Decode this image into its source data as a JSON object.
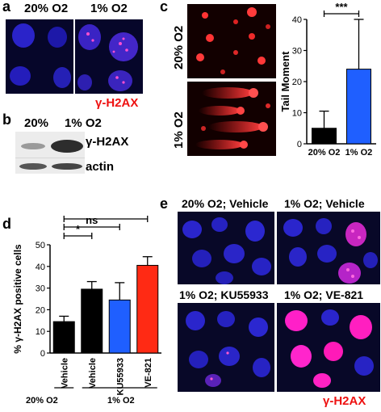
{
  "panel_a": {
    "letter": "a",
    "labels": [
      "20% O2",
      "1% O2"
    ],
    "stain": "γ-H2AX"
  },
  "panel_b": {
    "letter": "b",
    "lanes": [
      "20%",
      "1% O2"
    ],
    "bands": [
      "γ-H2AX",
      "actin"
    ]
  },
  "panel_c": {
    "letter": "c",
    "row_labels": [
      "20% O2",
      "1% O2"
    ]
  },
  "panel_d": {
    "letter": "d",
    "group_labels": [
      "20% O2",
      "1% O2"
    ]
  },
  "panel_e": {
    "letter": "e",
    "titles": [
      "20% O2; Vehicle",
      "1% O2; Vehicle",
      "1% O2; KU55933",
      "1% O2; VE-821"
    ],
    "stain": "γ-H2AX"
  },
  "chart_data": [
    {
      "type": "bar",
      "panel": "c",
      "categories": [
        "20% O2",
        "1% O2"
      ],
      "values": [
        5,
        24
      ],
      "errors": [
        5.5,
        16
      ],
      "colors": [
        "#000000",
        "#1f5fff"
      ],
      "ylabel": "Tail Moment",
      "ylim": [
        0,
        40
      ],
      "yticks": [
        0,
        10,
        20,
        30,
        40
      ],
      "significance": [
        {
          "pair": [
            0,
            1
          ],
          "label": "***"
        }
      ],
      "grid": false
    },
    {
      "type": "bar",
      "panel": "d",
      "categories": [
        "Vehicle",
        "Vehicle",
        "KU55933",
        "VE-821"
      ],
      "values": [
        14.5,
        29.5,
        24.5,
        40.5
      ],
      "errors": [
        2.5,
        3.5,
        8,
        4
      ],
      "colors": [
        "#000000",
        "#000000",
        "#1f5fff",
        "#ff2a14"
      ],
      "ylabel": "% γ-H2AX positive cells",
      "ylim": [
        0,
        50
      ],
      "yticks": [
        0,
        10,
        20,
        30,
        40,
        50
      ],
      "significance": [
        {
          "pair": [
            0,
            1
          ],
          "label": "*"
        },
        {
          "pair": [
            0,
            2
          ],
          "label": "ns"
        },
        {
          "pair": [
            0,
            3
          ],
          "label": "***"
        }
      ],
      "grid": false
    }
  ]
}
